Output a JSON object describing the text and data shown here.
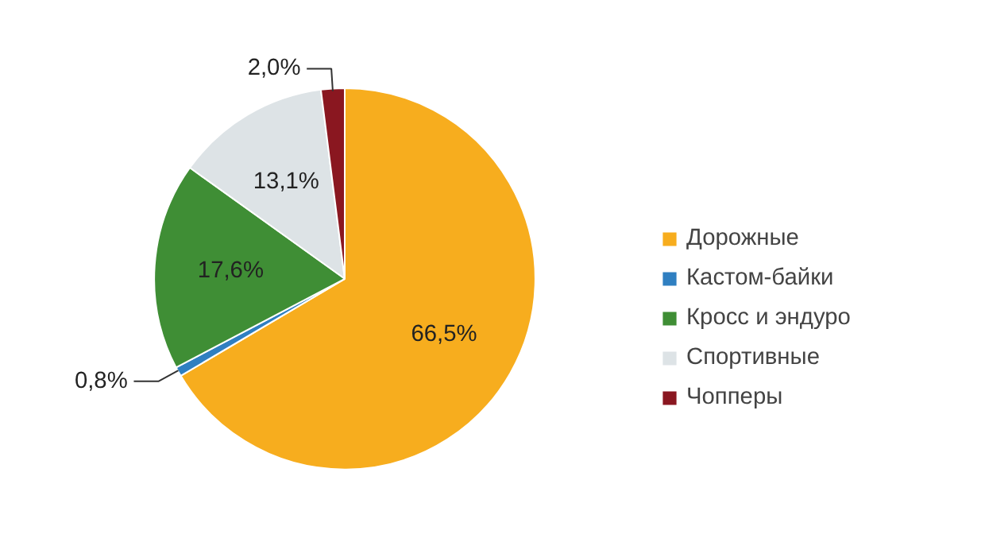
{
  "chart_data": {
    "type": "pie",
    "categories": [
      "Дорожные",
      "Кастом-байки",
      "Кросс и эндуро",
      "Спортивные",
      "Чопперы"
    ],
    "values": [
      66.5,
      0.8,
      17.6,
      13.1,
      2.0
    ],
    "colors": [
      "#f7ad1e",
      "#2f7fc1",
      "#3f8e35",
      "#dde3e6",
      "#8a1720"
    ],
    "value_labels": [
      "66,5%",
      "0,8%",
      "17,6%",
      "13,1%",
      "2,0%"
    ],
    "legend": "right"
  }
}
